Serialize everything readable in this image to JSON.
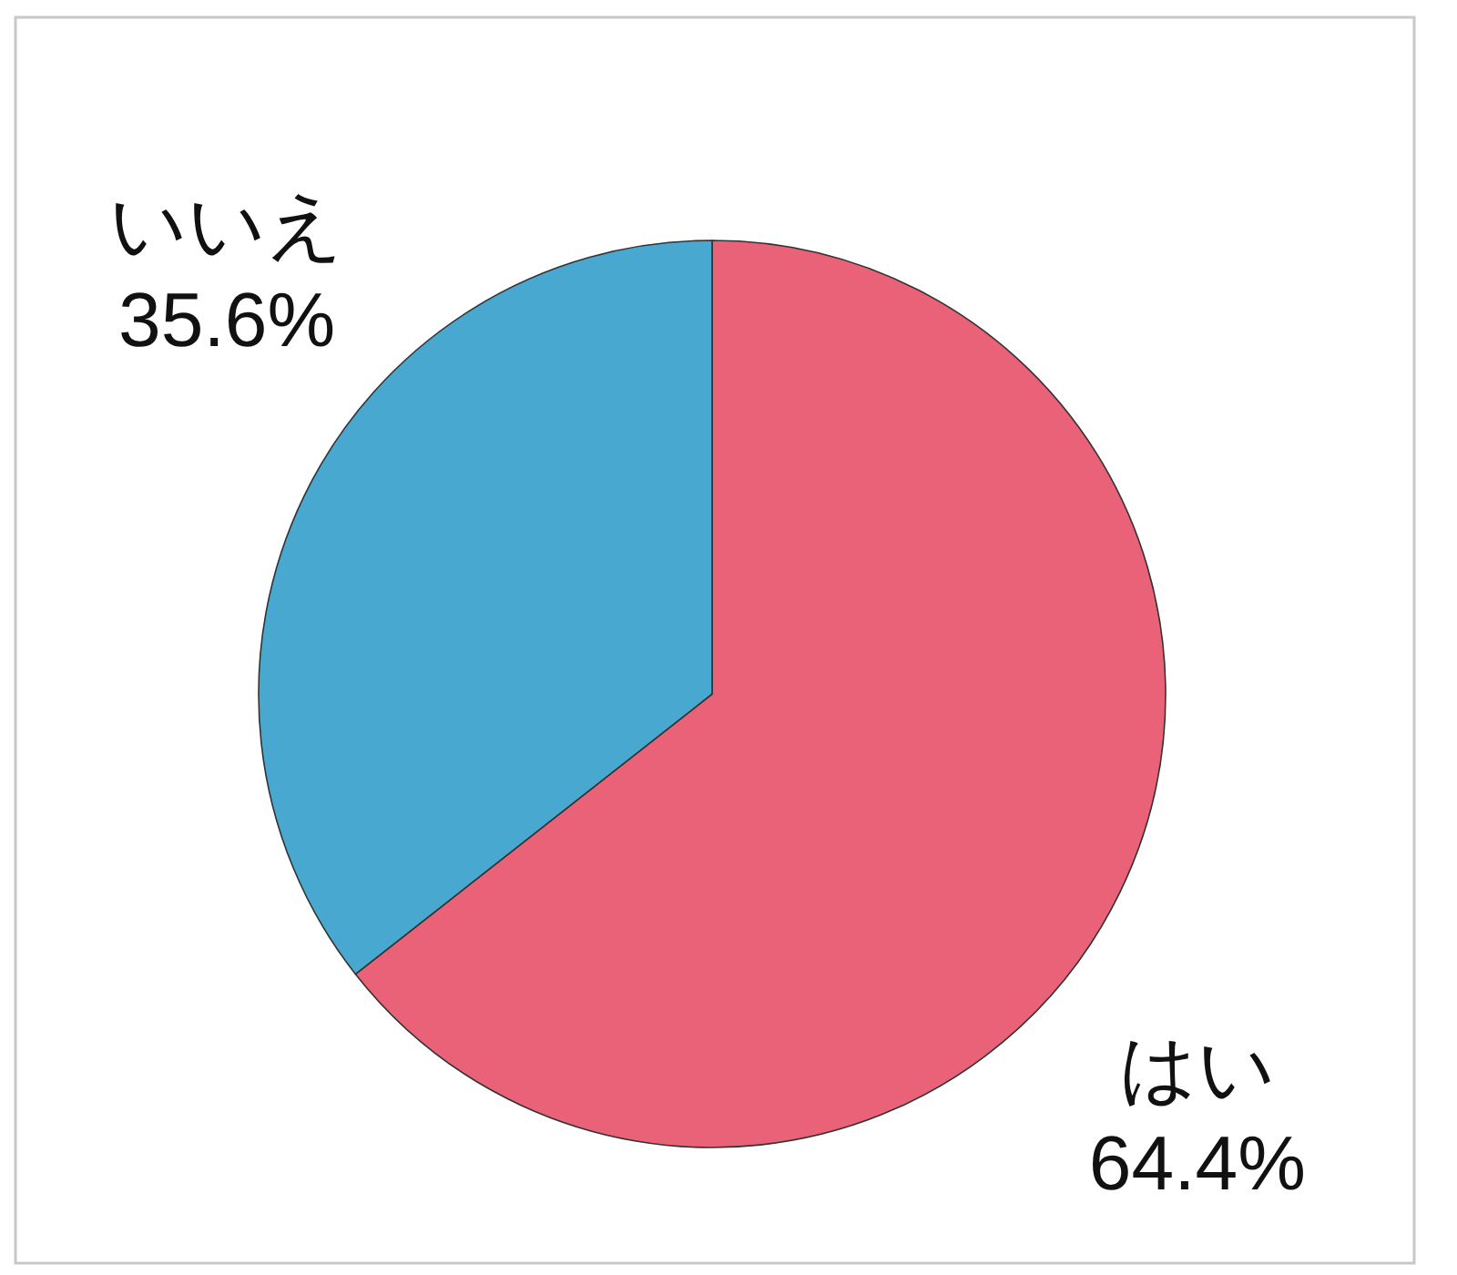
{
  "chart_data": {
    "type": "pie",
    "categories": [
      "はい",
      "いいえ"
    ],
    "values": [
      64.4,
      35.6
    ],
    "colors": [
      "#e96277",
      "#48a8d0"
    ],
    "value_labels": [
      "64.4%",
      "35.6%"
    ]
  }
}
